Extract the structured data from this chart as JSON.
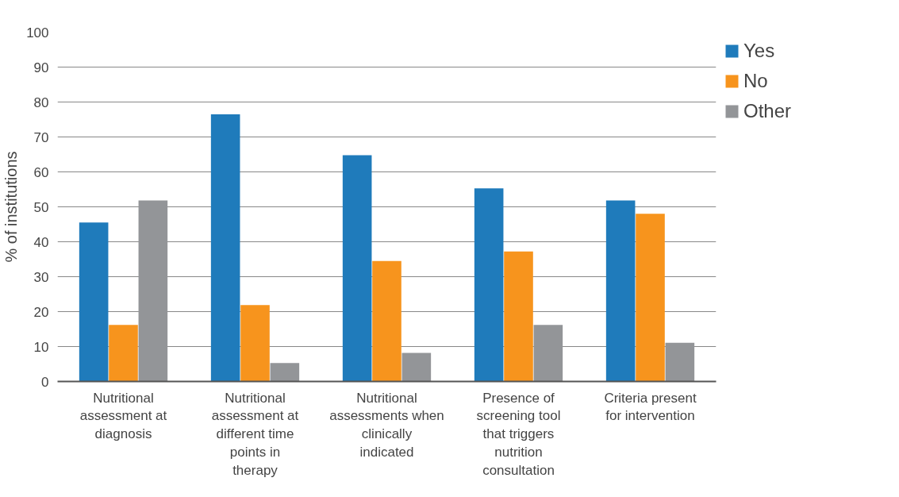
{
  "chart_data": {
    "type": "bar",
    "ylabel": "% of institutions",
    "categories": [
      "Nutritional assessment at diagnosis",
      "Nutritional assessment at different time points in therapy",
      "Nutritional assessments when clinically indicated",
      "Presence of screening tool that triggers nutrition consultation",
      "Criteria present for intervention"
    ],
    "series": [
      {
        "name": "Yes",
        "color": "#1f7bbb",
        "values": [
          45.5,
          76.5,
          64.8,
          55.3,
          51.8
        ]
      },
      {
        "name": "No",
        "color": "#f7941d",
        "values": [
          16.2,
          21.9,
          34.5,
          37.2,
          48.0
        ]
      },
      {
        "name": "Other",
        "color": "#939598",
        "values": [
          51.8,
          5.3,
          8.2,
          16.2,
          11.1
        ]
      }
    ],
    "ylim": [
      0,
      100
    ],
    "yticks": [
      0,
      10,
      20,
      30,
      40,
      50,
      60,
      70,
      80,
      90,
      100
    ],
    "grid": "y",
    "legend": "top right"
  }
}
